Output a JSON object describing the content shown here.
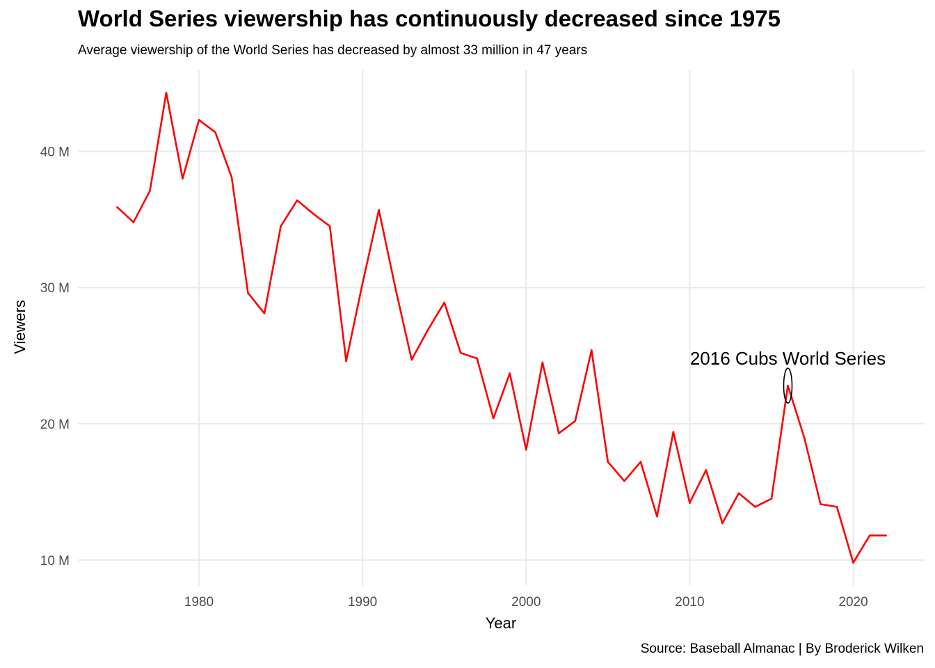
{
  "chart_data": {
    "type": "line",
    "title": "World Series viewership has continuously decreased since 1975",
    "subtitle": "Average viewership of the World Series has decreased by almost 33 million in 47 years",
    "caption": "Source: Baseball Almanac | By Broderick Wilken",
    "xlabel": "Year",
    "ylabel": "Viewers",
    "xlim": [
      1972.6,
      2024.4
    ],
    "ylim": [
      8.1,
      46.0
    ],
    "x_ticks": [
      1980,
      1990,
      2000,
      2010,
      2020
    ],
    "x_tick_labels": [
      "1980",
      "1990",
      "2000",
      "2010",
      "2020"
    ],
    "y_ticks": [
      10,
      20,
      30,
      40
    ],
    "y_tick_labels": [
      "10 M",
      "20 M",
      "30 M",
      "40 M"
    ],
    "y_unit": "millions of viewers",
    "grid": true,
    "line_color": "#ff0000",
    "series": [
      {
        "x": [
          1975,
          1976,
          1977,
          1978,
          1979,
          1980,
          1981,
          1982,
          1983,
          1984,
          1985,
          1986,
          1987,
          1988,
          1989,
          1990,
          1991,
          1992,
          1993,
          1994,
          1995,
          1996,
          1997,
          1998,
          1999,
          2000,
          2001,
          2002,
          2003,
          2004,
          2005,
          2006,
          2007,
          2008,
          2009,
          2010,
          2011,
          2012,
          2013,
          2014,
          2015,
          2016,
          2017,
          2018,
          2019,
          2020,
          2021,
          2022
        ],
        "values": [
          35.9,
          34.8,
          37.1,
          44.3,
          38.0,
          42.3,
          41.4,
          38.1,
          29.6,
          28.1,
          34.5,
          36.4,
          35.4,
          34.5,
          24.6,
          30.3,
          35.7,
          30.0,
          24.7,
          26.9,
          28.9,
          25.2,
          24.8,
          20.4,
          23.7,
          18.1,
          24.5,
          19.3,
          20.2,
          25.4,
          17.2,
          15.8,
          17.2,
          13.2,
          19.4,
          14.2,
          16.6,
          12.7,
          14.9,
          13.9,
          14.5,
          22.8,
          19.0,
          14.1,
          13.9,
          9.8,
          11.8,
          11.8
        ]
      }
    ],
    "annotation": {
      "text": "2016 Cubs World Series",
      "x": 2016,
      "y": 22.8,
      "text_y": 24.8
    }
  }
}
